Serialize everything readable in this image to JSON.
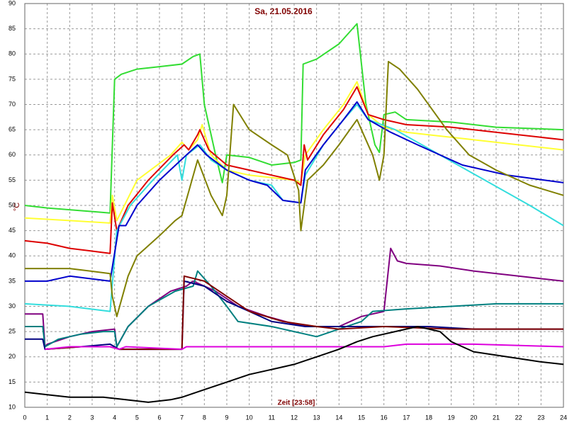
{
  "chart_data": {
    "type": "line",
    "title": "Sa, 21.05.2016",
    "y_label": "°C",
    "x_label": "Zeit [23:58]",
    "xlim": [
      0,
      24
    ],
    "xticks": [
      0,
      1,
      2,
      3,
      4,
      5,
      6,
      7,
      8,
      9,
      10,
      11,
      12,
      13,
      14,
      15,
      16,
      17,
      18,
      19,
      20,
      21,
      22,
      23,
      24
    ],
    "ylim": [
      10,
      90
    ],
    "yticks": [
      10,
      15,
      20,
      25,
      30,
      35,
      40,
      45,
      50,
      55,
      60,
      65,
      70,
      75,
      80,
      85,
      90
    ],
    "grid": true,
    "series": [
      {
        "color": "#33dd33",
        "x": [
          0,
          1,
          3.8,
          4.0,
          4.3,
          5,
          6,
          7,
          7.5,
          7.8,
          8.0,
          8.5,
          8.8,
          9.0,
          10,
          11,
          12,
          12.3,
          12.4,
          13,
          14,
          14.8,
          15.2,
          15.6,
          15.8,
          16,
          16.5,
          17,
          19,
          21,
          24
        ],
        "values": [
          50,
          49.5,
          48.5,
          75,
          76,
          77,
          77.5,
          78,
          79.5,
          80,
          70,
          60,
          54.5,
          60,
          59.5,
          58,
          58.5,
          59,
          78,
          79,
          82,
          86,
          70,
          62,
          60.5,
          68,
          68.5,
          67,
          66.5,
          65.5,
          65
        ]
      },
      {
        "color": "#ffff33",
        "x": [
          0,
          2,
          3.8,
          3.9,
          4.1,
          5,
          6.5,
          7.0,
          7.3,
          7.7,
          7.9,
          8.3,
          9,
          10,
          11,
          12,
          12.3,
          12.5,
          13.3,
          14.2,
          14.8,
          15.3,
          16,
          17,
          19,
          21,
          24
        ],
        "values": [
          47.5,
          47,
          46.5,
          52,
          47,
          55,
          60,
          62.5,
          61,
          63,
          66,
          60,
          57,
          56,
          55.5,
          55,
          54.5,
          60,
          65,
          70,
          74.5,
          68,
          65.5,
          64.5,
          63.5,
          62.5,
          61
        ]
      },
      {
        "color": "#dd0000",
        "x": [
          0,
          1,
          2,
          3.8,
          3.9,
          4.1,
          4.6,
          5.5,
          6.6,
          7.1,
          7.3,
          7.7,
          7.8,
          8.2,
          9,
          10,
          11,
          12,
          12.3,
          12.45,
          12.6,
          13.3,
          14.2,
          14.8,
          15.3,
          16,
          17,
          19,
          21,
          24
        ],
        "values": [
          43,
          42.5,
          41.5,
          40.5,
          50.5,
          45,
          50,
          55,
          60,
          62,
          61,
          64,
          65,
          61,
          58,
          57,
          56,
          55,
          54,
          62,
          59,
          64,
          69,
          73.5,
          68,
          67,
          66,
          65.5,
          64.5,
          63
        ]
      },
      {
        "color": "#33dddd",
        "x": [
          0,
          2,
          3.8,
          4.1,
          4.7,
          5.7,
          6.8,
          7.0,
          7.2,
          7.8,
          8.3,
          9,
          10,
          11,
          11.5,
          12.3,
          12.5,
          13.3,
          14.2,
          14.8,
          15.3,
          16.5,
          18.3,
          20.5,
          22.5,
          24
        ],
        "values": [
          30.5,
          30,
          29,
          45,
          50,
          55,
          60,
          55,
          60,
          62,
          59,
          57,
          55,
          54,
          51,
          50.5,
          56,
          62,
          67,
          70,
          67,
          65,
          60.5,
          55,
          50,
          46
        ]
      },
      {
        "color": "#0000cc",
        "x": [
          0,
          1,
          2,
          3.8,
          4.2,
          4.5,
          5,
          6,
          7.2,
          7.7,
          8.1,
          9,
          10,
          10.8,
          11.5,
          12.3,
          12.5,
          13.3,
          14.2,
          14.8,
          15.3,
          16.3,
          17.5,
          19.5,
          21.5,
          24
        ],
        "values": [
          35,
          35,
          36,
          35,
          46,
          46,
          50,
          55,
          60,
          62,
          60,
          57,
          55,
          54,
          51,
          50.5,
          57,
          62,
          67,
          70.5,
          67,
          64.5,
          62,
          58,
          56,
          54.5
        ]
      },
      {
        "color": "#808000",
        "x": [
          0,
          2,
          3.8,
          3.9,
          4.1,
          4.6,
          5,
          6,
          6.7,
          7.0,
          7.7,
          8.3,
          8.8,
          9,
          9.3,
          10,
          11,
          11.7,
          12.2,
          12.3,
          12.6,
          13.3,
          14,
          14.8,
          15.5,
          15.8,
          16,
          16.2,
          16.7,
          17.5,
          18.8,
          19.8,
          21,
          22.5,
          24
        ],
        "values": [
          37.5,
          37.5,
          36.5,
          32,
          28,
          36,
          40,
          44,
          47,
          48,
          59,
          52,
          48,
          52,
          70,
          65,
          62,
          60,
          53,
          45,
          55,
          58,
          62,
          67,
          60,
          55,
          60,
          78.5,
          77,
          73,
          65,
          60,
          57,
          54,
          52
        ]
      },
      {
        "color": "#800080",
        "x": [
          0,
          0.8,
          0.9,
          1,
          2,
          3,
          4.0,
          4.1,
          4.6,
          5.5,
          6.5,
          7.2,
          7.5,
          8.5,
          9.5,
          10.8,
          12,
          13,
          14,
          15,
          16.0,
          16.3,
          16.6,
          17,
          18.5,
          20,
          22,
          24
        ],
        "values": [
          28.5,
          28.5,
          22,
          22.5,
          24,
          25,
          25.5,
          22,
          26,
          30,
          33,
          34,
          35,
          33,
          30,
          28,
          26.5,
          26,
          26,
          28,
          29,
          41.5,
          39,
          38.5,
          38,
          37,
          36,
          35
        ]
      },
      {
        "color": "#008080",
        "x": [
          0,
          0.8,
          0.9,
          1.5,
          2.5,
          3.5,
          4.0,
          4.1,
          4.6,
          5.5,
          6.7,
          7.5,
          7.7,
          8.3,
          9,
          9.5,
          11,
          12.5,
          13,
          14,
          15,
          15.5,
          17,
          19,
          21,
          24
        ],
        "values": [
          26,
          26,
          22,
          23.5,
          24.5,
          25,
          25,
          22,
          26,
          30,
          33,
          34,
          37,
          34,
          30,
          27,
          26,
          24.5,
          24,
          25.5,
          27,
          29,
          29.5,
          30,
          30.5,
          30.5
        ]
      },
      {
        "color": "#000080",
        "x": [
          0,
          0.8,
          0.9,
          2.5,
          3.8,
          4.2,
          7.0,
          7.1,
          8,
          9,
          10,
          11,
          12.5,
          14,
          16,
          18,
          20,
          24
        ],
        "values": [
          23.5,
          23.5,
          21.5,
          22,
          22.5,
          21.5,
          21.5,
          35,
          34,
          31,
          29,
          27,
          26,
          26,
          26,
          26,
          25.5,
          25.5
        ]
      },
      {
        "color": "#800000",
        "x": [
          0.9,
          2.5,
          3.8,
          4.2,
          7.0,
          7.1,
          8,
          9,
          10,
          11.5,
          13,
          14,
          16,
          19,
          24
        ],
        "values": [
          21.5,
          22,
          22,
          21.5,
          21.5,
          36,
          35,
          32,
          29,
          27,
          26,
          25.5,
          26,
          25.5,
          25.5
        ]
      },
      {
        "color": "#dd00dd",
        "x": [
          0.9,
          2,
          3.8,
          4.2,
          4.5,
          7,
          7.2,
          12,
          16,
          17,
          20,
          24
        ],
        "values": [
          21.5,
          22,
          22,
          21.5,
          22,
          21.5,
          22,
          22,
          22,
          22.5,
          22.5,
          22
        ]
      },
      {
        "color": "#000000",
        "x": [
          0,
          1,
          2,
          3.5,
          4.5,
          5.5,
          6.5,
          7,
          8,
          9,
          10,
          11,
          12,
          13,
          14,
          14.8,
          15.5,
          16.5,
          17.5,
          18.5,
          19,
          20,
          21.5,
          23,
          24
        ],
        "values": [
          13,
          12.5,
          12,
          12,
          11.5,
          11,
          11.5,
          12,
          13.5,
          15,
          16.5,
          17.5,
          18.5,
          20,
          21.5,
          23,
          24,
          25,
          26,
          25,
          23,
          21,
          20,
          19,
          18.5
        ]
      }
    ]
  }
}
